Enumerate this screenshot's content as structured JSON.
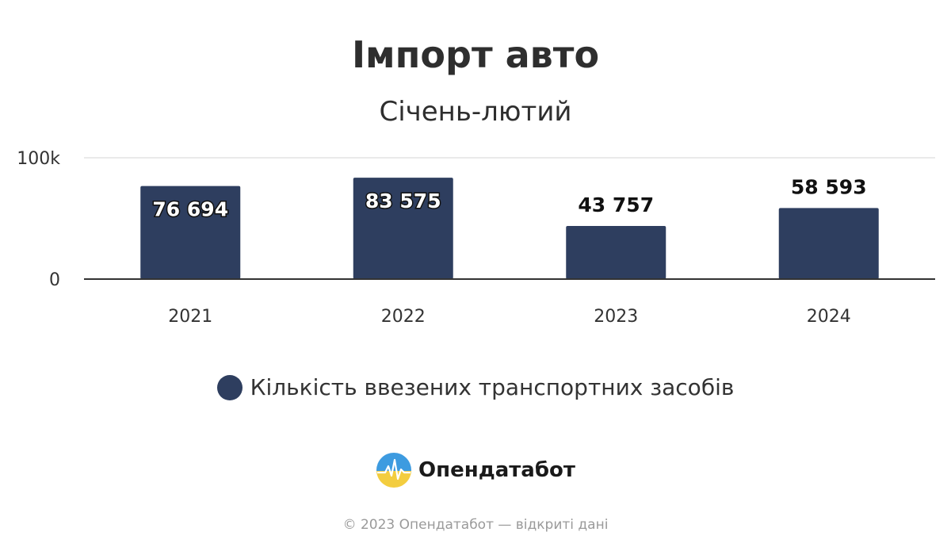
{
  "colors": {
    "bar": "#2e3e5f",
    "grid": "#e3e3e3",
    "axis": "#333333"
  },
  "chart_data": {
    "type": "bar",
    "title": "Імпорт авто",
    "subtitle": "Січень-лютий",
    "categories": [
      "2021",
      "2022",
      "2023",
      "2024"
    ],
    "series": [
      {
        "name": "Кількість ввезених транспортних засобів",
        "values": [
          76694,
          83575,
          43757,
          58593
        ],
        "labels": [
          "76 694",
          "83 575",
          "43 757",
          "58 593"
        ]
      }
    ],
    "ylim": [
      0,
      100000
    ],
    "y_ticks": [
      {
        "value": 0,
        "label": "0"
      },
      {
        "value": 100000,
        "label": "100k"
      }
    ],
    "grid": true,
    "legend": "bottom-center"
  },
  "brand": {
    "name": "Опендатабот",
    "logo_icon": "opendatabot-logo-icon"
  },
  "footer": {
    "copyright": "© 2023 Опендатабот — відкриті дані"
  }
}
